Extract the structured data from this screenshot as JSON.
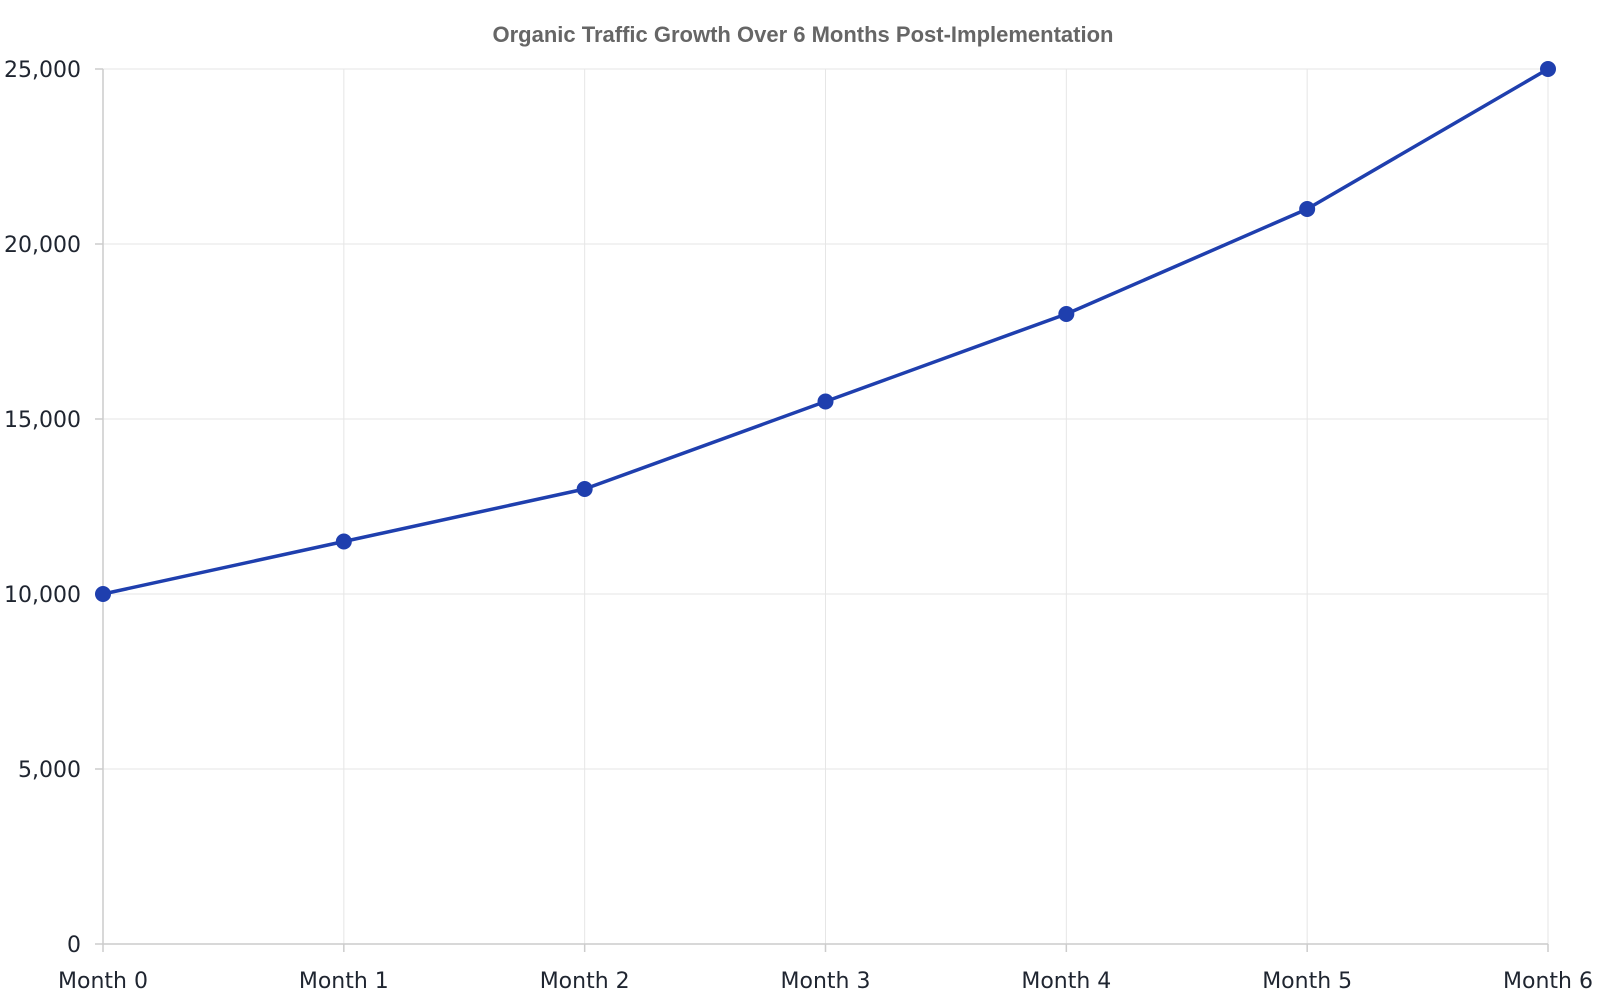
{
  "chart_data": {
    "type": "line",
    "title": "Organic Traffic Growth Over 6 Months Post-Implementation",
    "xlabel": "",
    "ylabel": "",
    "categories": [
      "Month 0",
      "Month 1",
      "Month 2",
      "Month 3",
      "Month 4",
      "Month 5",
      "Month 6"
    ],
    "series": [
      {
        "values": [
          10000,
          11500,
          13000,
          15500,
          18000,
          21000,
          25000
        ],
        "color": "#1f3fae"
      }
    ],
    "ylim": [
      0,
      25000
    ],
    "yticks": [
      0,
      5000,
      10000,
      15000,
      20000,
      25000
    ],
    "ytick_labels": [
      "0",
      "5,000",
      "10,000",
      "15,000",
      "20,000",
      "25,000"
    ],
    "grid": true,
    "legend": "none"
  }
}
